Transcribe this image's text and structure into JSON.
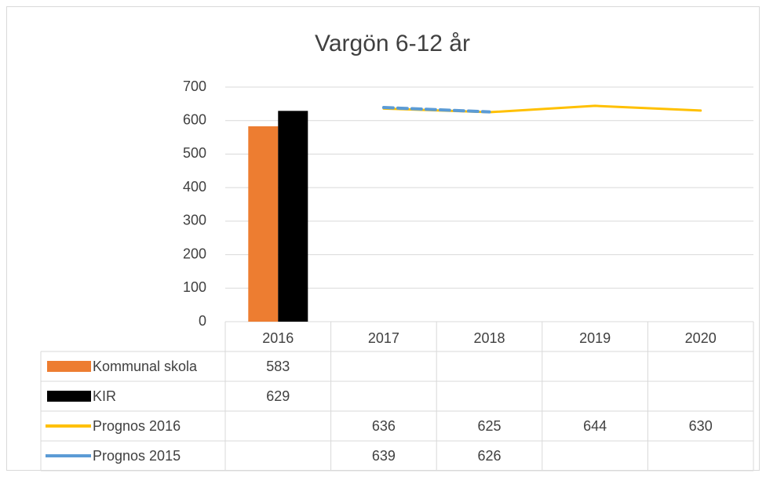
{
  "chart_data": {
    "type": "bar+line",
    "title": "Vargön 6-12 år",
    "categories": [
      "2016",
      "2017",
      "2018",
      "2019",
      "2020"
    ],
    "series": [
      {
        "name": "Kommunal skola",
        "type": "bar",
        "color": "#ed7d31",
        "values": [
          583,
          null,
          null,
          null,
          null
        ]
      },
      {
        "name": "KIR",
        "type": "bar",
        "color": "#000000",
        "values": [
          629,
          null,
          null,
          null,
          null
        ]
      },
      {
        "name": "Prognos 2016",
        "type": "line",
        "color": "#ffc000",
        "values": [
          null,
          636,
          625,
          644,
          630
        ]
      },
      {
        "name": "Prognos 2015",
        "type": "line",
        "color": "#5b9bd5",
        "dashed": true,
        "values": [
          null,
          639,
          626,
          null,
          null
        ]
      }
    ],
    "ylim": [
      0,
      700
    ],
    "yticks": [
      0,
      100,
      200,
      300,
      400,
      500,
      600,
      700
    ],
    "grid": true,
    "data_table": true
  }
}
